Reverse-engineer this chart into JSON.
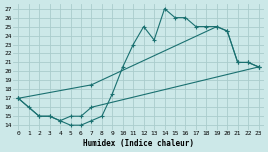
{
  "xlabel": "Humidex (Indice chaleur)",
  "bg_color": "#cce8e8",
  "grid_color": "#aacccc",
  "line_color": "#1a7070",
  "xlim": [
    -0.5,
    23.5
  ],
  "ylim": [
    13.5,
    27.5
  ],
  "xticks": [
    0,
    1,
    2,
    3,
    4,
    5,
    6,
    7,
    8,
    9,
    10,
    11,
    12,
    13,
    14,
    15,
    16,
    17,
    18,
    19,
    20,
    21,
    22,
    23
  ],
  "yticks": [
    14,
    15,
    16,
    17,
    18,
    19,
    20,
    21,
    22,
    23,
    24,
    25,
    26,
    27
  ],
  "line1_x": [
    0,
    1,
    2,
    3,
    4,
    5,
    6,
    7,
    8,
    9,
    10,
    11,
    12,
    13,
    14,
    15,
    16,
    17,
    18,
    19,
    20,
    21,
    22,
    23
  ],
  "line1_y": [
    17,
    16,
    15,
    15,
    14.5,
    14,
    14,
    14.5,
    15,
    17.5,
    20.5,
    23,
    25,
    23.5,
    27,
    26,
    26,
    25,
    25,
    25,
    24.5,
    21,
    21,
    20.5
  ],
  "line2_x": [
    0,
    7,
    19,
    20,
    21,
    22,
    23
  ],
  "line2_y": [
    17,
    18.5,
    25,
    24.5,
    21,
    21,
    20.5
  ],
  "line3_x": [
    0,
    2,
    3,
    4,
    5,
    6,
    7,
    23
  ],
  "line3_y": [
    17,
    15,
    15,
    14.5,
    15,
    15,
    16,
    20.5
  ]
}
